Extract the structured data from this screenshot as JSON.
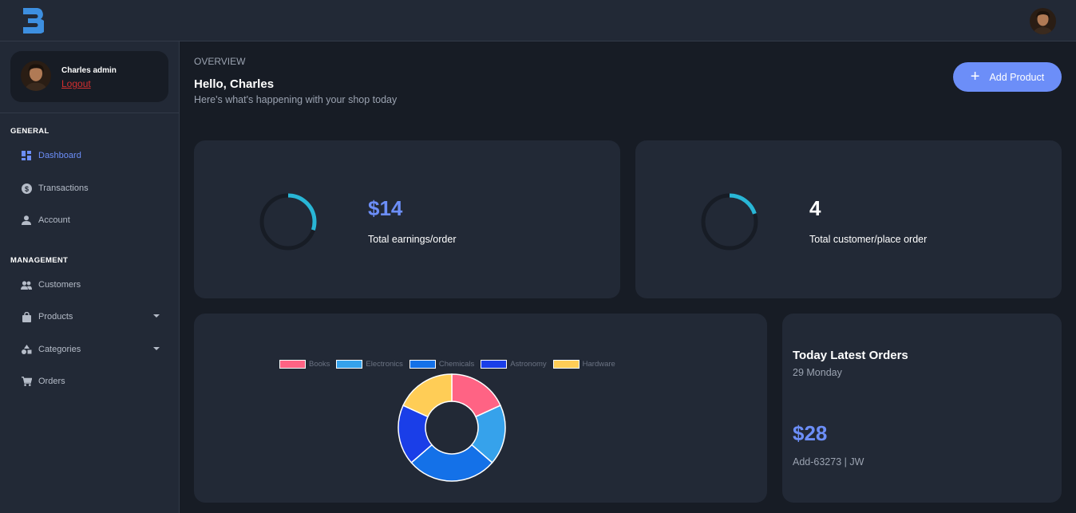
{
  "header": {
    "logo_icon": "b-logo-icon",
    "avatar_icon": "user-avatar"
  },
  "sidebar": {
    "profile": {
      "name": "Charles admin",
      "logout": "Logout"
    },
    "sections": [
      {
        "title": "GENERAL",
        "items": [
          {
            "label": "Dashboard",
            "icon": "dashboard-icon",
            "active": true
          },
          {
            "label": "Transactions",
            "icon": "dollar-circle-icon"
          },
          {
            "label": "Account",
            "icon": "person-icon"
          }
        ]
      },
      {
        "title": "MANAGEMENT",
        "items": [
          {
            "label": "Customers",
            "icon": "people-icon"
          },
          {
            "label": "Products",
            "icon": "shopping-bag-icon",
            "expandable": true
          },
          {
            "label": "Categories",
            "icon": "shapes-icon",
            "expandable": true
          },
          {
            "label": "Orders",
            "icon": "cart-icon"
          }
        ]
      }
    ]
  },
  "main": {
    "overview": "OVERVIEW",
    "greeting": "Hello, Charles",
    "subtitle": "Here's what's happening with your shop today",
    "add_button": "Add Product",
    "stats": [
      {
        "value": "$14",
        "label": "Total earnings/order",
        "progress": 0.3
      },
      {
        "value": "4",
        "label": "Total customer/place order",
        "progress": 0.2
      }
    ],
    "latest_orders": {
      "title": "Today Latest Orders",
      "date": "29 Monday",
      "amount": "$28",
      "reference": "Add-63273 | JW"
    }
  },
  "colors": {
    "accent": "#6c8ef8",
    "ring": "#29b6d6",
    "logo": "#3d8fe0"
  },
  "chart_data": {
    "type": "pie",
    "categories": [
      "Books",
      "Electronics",
      "Chemicals",
      "Astronomy",
      "Hardware"
    ],
    "values": [
      20,
      20,
      30,
      20,
      20
    ],
    "colors": [
      "#ff6384",
      "#36a2eb",
      "#1471e8",
      "#1a3ee8",
      "#ffcd56"
    ],
    "legend": "top"
  }
}
